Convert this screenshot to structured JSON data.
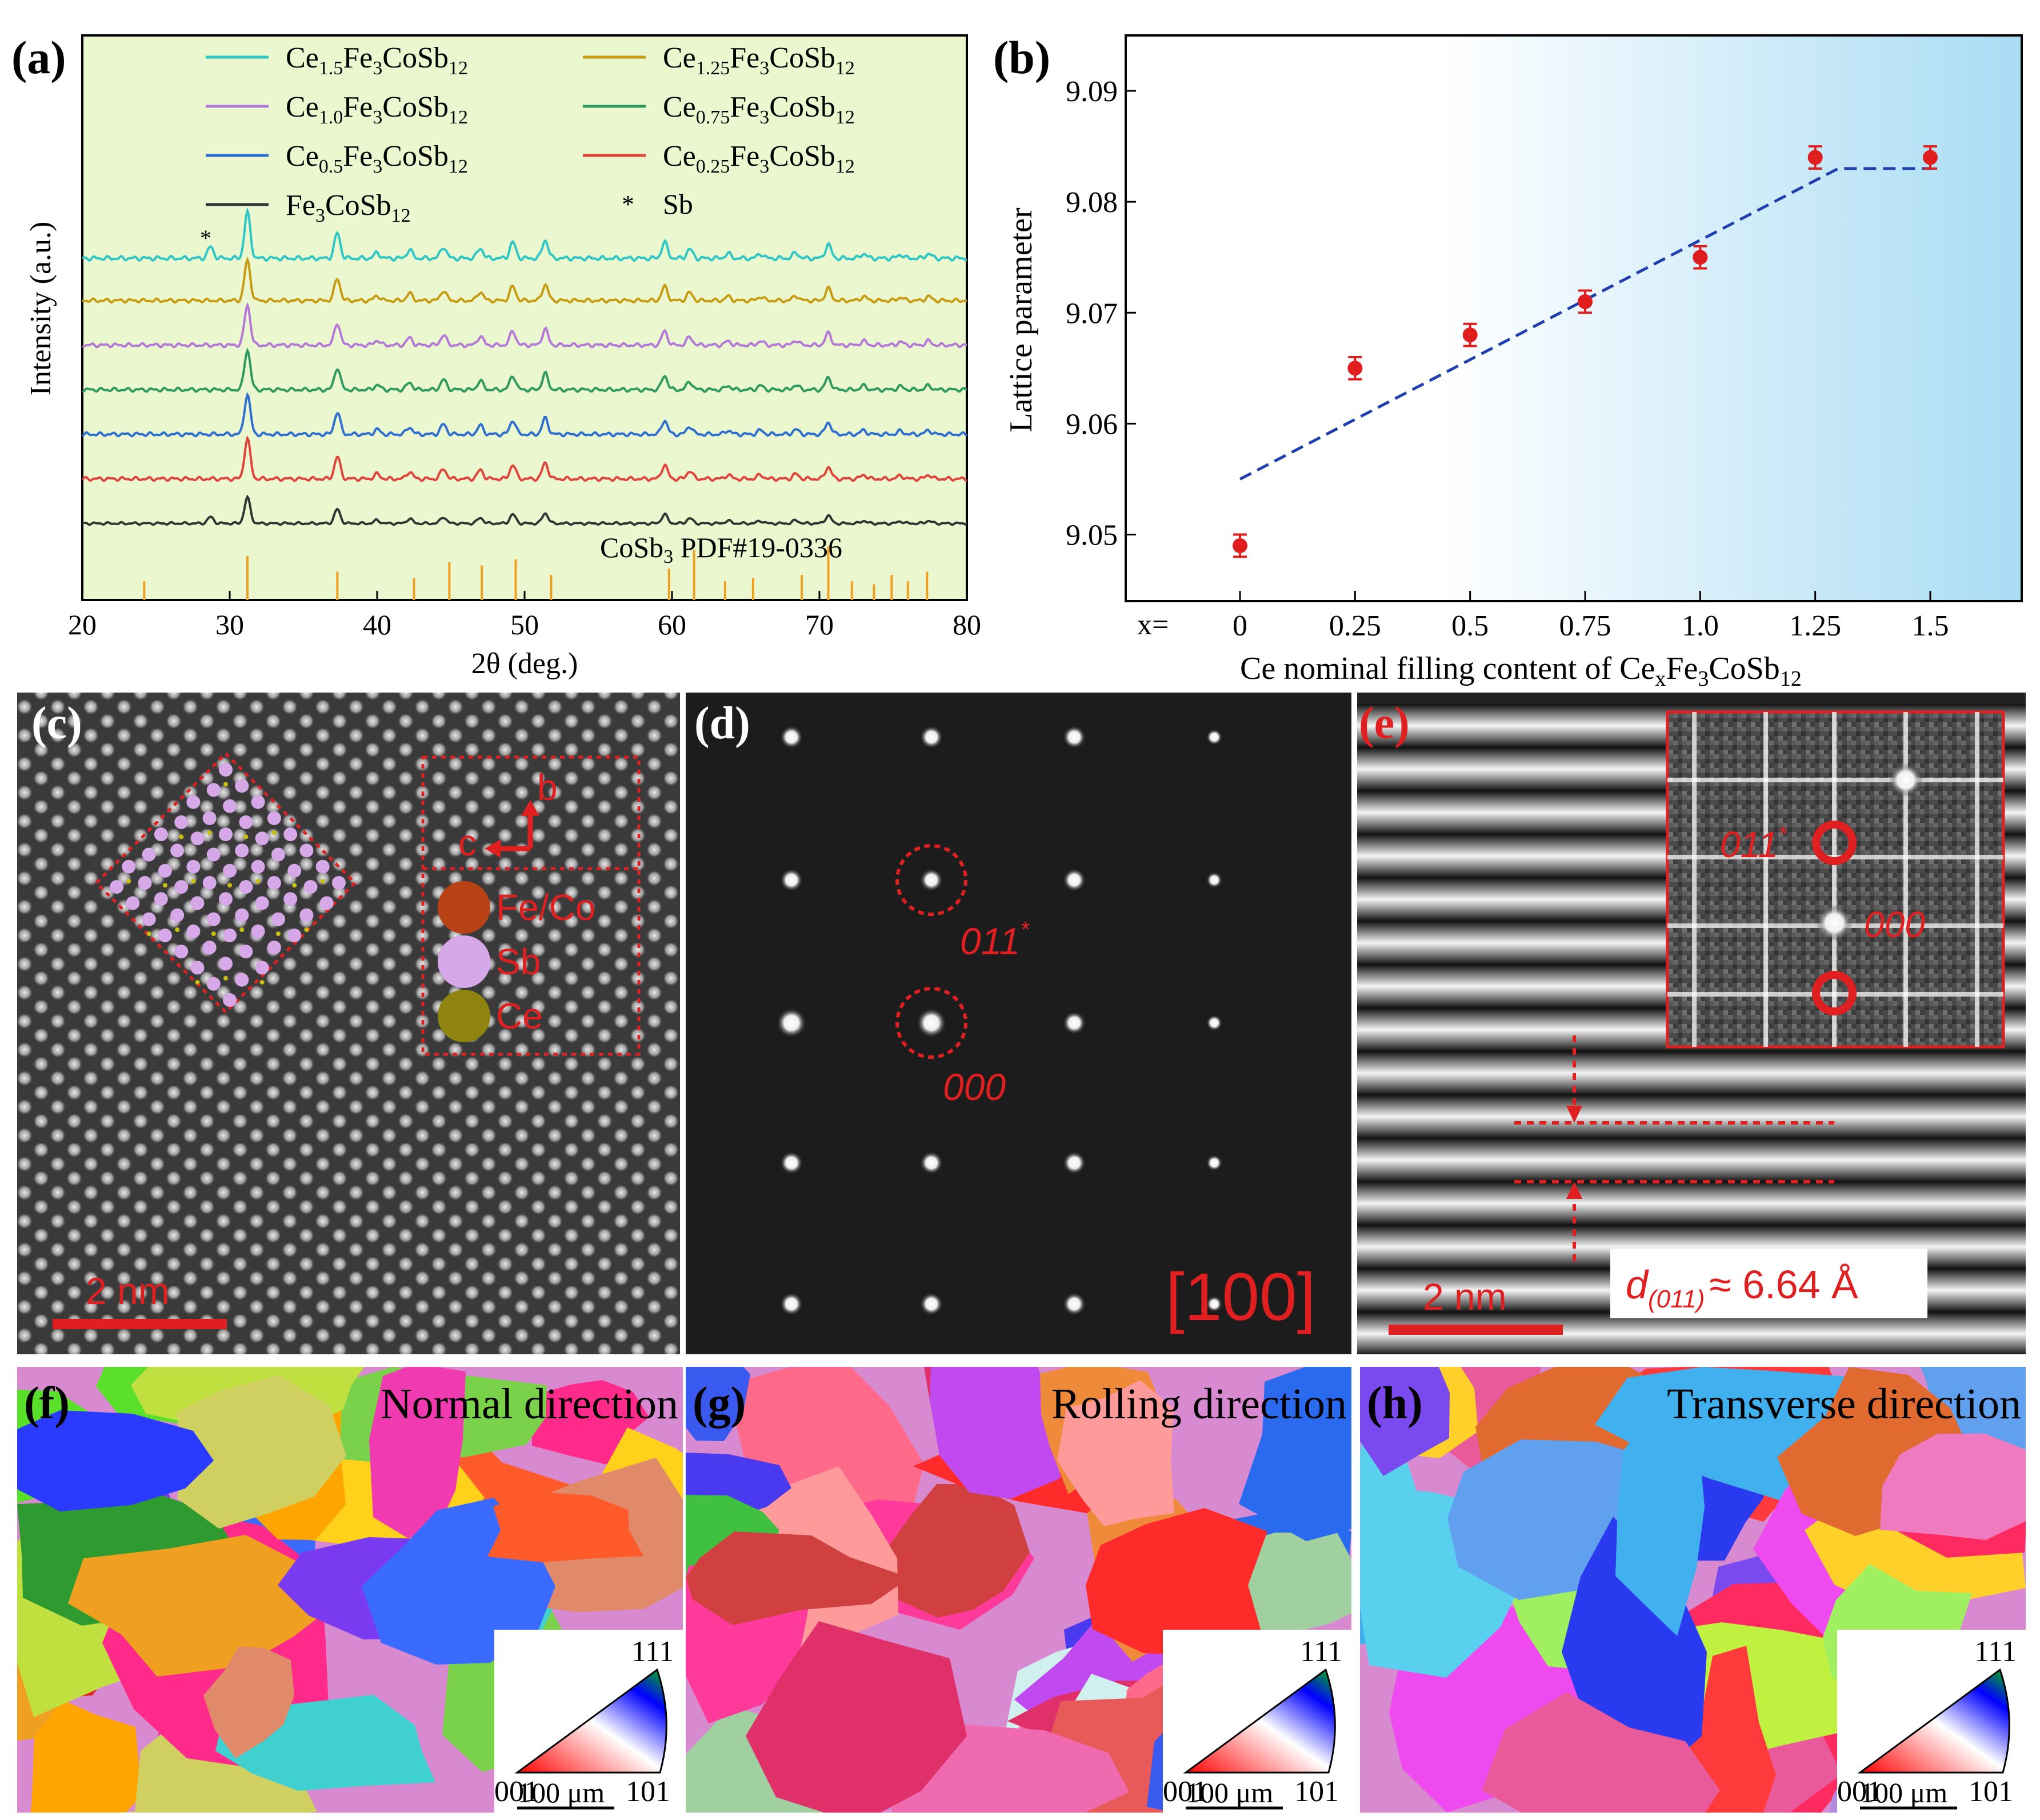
{
  "panel_a": {
    "label": "(a)",
    "ylabel": "Intensity (a.u.)",
    "xlabel": "2θ (deg.)",
    "xticks": [
      "20",
      "30",
      "40",
      "50",
      "60",
      "70",
      "80"
    ],
    "legend": [
      {
        "base": "Ce",
        "sub": "1.5",
        "rest": "Fe",
        "sub2": "3",
        "rest2": "CoSb",
        "sub3": "12",
        "color": "#2fc6c6"
      },
      {
        "base": "Ce",
        "sub": "1.25",
        "rest": "Fe",
        "sub2": "3",
        "rest2": "CoSb",
        "sub3": "12",
        "color": "#c89c12"
      },
      {
        "base": "Ce",
        "sub": "1.0",
        "rest": "Fe",
        "sub2": "3",
        "rest2": "CoSb",
        "sub3": "12",
        "color": "#b479d8"
      },
      {
        "base": "Ce",
        "sub": "0.75",
        "rest": "Fe",
        "sub2": "3",
        "rest2": "CoSb",
        "sub3": "12",
        "color": "#2f9a5e"
      },
      {
        "base": "Ce",
        "sub": "0.5",
        "rest": "Fe",
        "sub2": "3",
        "rest2": "CoSb",
        "sub3": "12",
        "color": "#2f6fcf"
      },
      {
        "base": "Ce",
        "sub": "0.25",
        "rest": "Fe",
        "sub2": "3",
        "rest2": "CoSb",
        "sub3": "12",
        "color": "#e0443a"
      },
      {
        "base": "",
        "sub": "",
        "rest": "Fe",
        "sub2": "3",
        "rest2": "CoSb",
        "sub3": "12",
        "color": "#333333"
      }
    ],
    "sb_marker": "*",
    "sb_label": "Sb",
    "pdf_label_main": "CoSb",
    "pdf_label_sub": "3",
    "pdf_label_rest": " PDF#19-0336",
    "pdf_color": "#f0a020"
  },
  "chart_data": {
    "type": "scatter",
    "title": "",
    "xlabel": "Ce nominal filling content of CexFe3CoSb12",
    "ylabel": "Lattice parameter",
    "x_prefix": "x=",
    "categories": [
      "0",
      "0.25",
      "0.5",
      "0.75",
      "1.0",
      "1.25",
      "1.5"
    ],
    "x": [
      0,
      0.25,
      0.5,
      0.75,
      1.0,
      1.25,
      1.5
    ],
    "y": [
      9.049,
      9.065,
      9.068,
      9.071,
      9.075,
      9.084,
      9.084
    ],
    "yerr": 0.001,
    "ylim": [
      9.044,
      9.095
    ],
    "yticks": [
      "9.05",
      "9.06",
      "9.07",
      "9.08",
      "9.09"
    ],
    "fit_line": {
      "x": [
        0,
        1.3,
        1.5
      ],
      "y": [
        9.055,
        9.083,
        9.083
      ],
      "style": "dashed",
      "color": "#1f3fb0"
    },
    "marker_color": "#e11e1e",
    "panel_label": "(b)"
  },
  "panel_c": {
    "label": "(c)",
    "scale": "2 nm",
    "axis_b": "b",
    "axis_c": "c",
    "legend": [
      "Fe/Co",
      "Sb",
      "Ce"
    ]
  },
  "panel_d": {
    "label": "(d)",
    "zone": "[100]",
    "spot1": "011",
    "spot1_sup": "*",
    "spot2": "000"
  },
  "panel_e": {
    "label": "(e)",
    "scale": "2 nm",
    "spot1": "011",
    "spot1_sup": "*",
    "spot2": "000",
    "d_label": "d",
    "d_sub": "(011)",
    "d_value": "≈ 6.64 Å"
  },
  "panel_f": {
    "label": "(f)",
    "title": "Normal direction",
    "ipf": [
      "111",
      "001",
      "101"
    ],
    "scale": "100 μm"
  },
  "panel_g": {
    "label": "(g)",
    "title": "Rolling direction",
    "ipf": [
      "111",
      "001",
      "101"
    ],
    "scale": "100 μm"
  },
  "panel_h": {
    "label": "(h)",
    "title": "Transverse direction",
    "ipf": [
      "111",
      "001",
      "101"
    ],
    "scale": "100 μm"
  }
}
